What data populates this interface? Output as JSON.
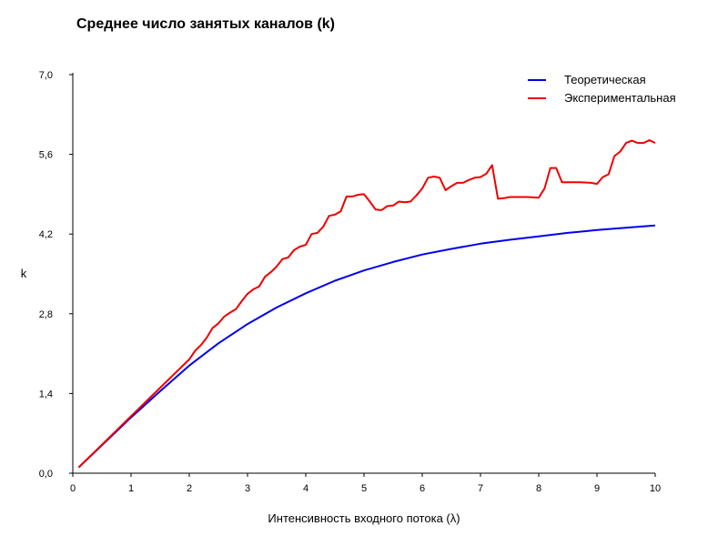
{
  "chart_data": {
    "type": "line",
    "title": "Среднее число занятых каналов (k)",
    "xlabel": "Интенсивность входного потока (λ)",
    "ylabel": "k",
    "xlim": [
      0,
      10
    ],
    "ylim": [
      0,
      7
    ],
    "x_ticks": [
      "0",
      "1",
      "2",
      "3",
      "4",
      "5",
      "6",
      "7",
      "8",
      "9",
      "10"
    ],
    "y_ticks": [
      "0,0",
      "1,4",
      "2,8",
      "4,2",
      "5,6",
      "7,0"
    ],
    "grid": false,
    "legend_position": "top-right",
    "series": [
      {
        "name": "Теоретическая",
        "color": "#0000ee",
        "points": [
          [
            0.1,
            0.1
          ],
          [
            0.5,
            0.49
          ],
          [
            1.0,
            0.98
          ],
          [
            1.5,
            1.44
          ],
          [
            2.0,
            1.89
          ],
          [
            2.5,
            2.28
          ],
          [
            3.0,
            2.62
          ],
          [
            3.5,
            2.91
          ],
          [
            4.0,
            3.16
          ],
          [
            4.5,
            3.38
          ],
          [
            5.0,
            3.56
          ],
          [
            5.5,
            3.71
          ],
          [
            6.0,
            3.84
          ],
          [
            6.5,
            3.94
          ],
          [
            7.0,
            4.03
          ],
          [
            7.5,
            4.1
          ],
          [
            8.0,
            4.16
          ],
          [
            8.5,
            4.22
          ],
          [
            9.0,
            4.27
          ],
          [
            9.5,
            4.31
          ],
          [
            10.0,
            4.35
          ]
        ]
      },
      {
        "name": "Экспериментальная",
        "color": "#ee0000",
        "points": [
          [
            0.1,
            0.1
          ],
          [
            0.5,
            0.5
          ],
          [
            1.0,
            1.0
          ],
          [
            1.5,
            1.5
          ],
          [
            1.7,
            1.7
          ],
          [
            1.9,
            1.9
          ],
          [
            2.0,
            2.0
          ],
          [
            2.1,
            2.15
          ],
          [
            2.2,
            2.25
          ],
          [
            2.3,
            2.38
          ],
          [
            2.4,
            2.55
          ],
          [
            2.5,
            2.63
          ],
          [
            2.6,
            2.75
          ],
          [
            2.7,
            2.82
          ],
          [
            2.8,
            2.88
          ],
          [
            2.9,
            3.02
          ],
          [
            3.0,
            3.15
          ],
          [
            3.1,
            3.23
          ],
          [
            3.2,
            3.28
          ],
          [
            3.3,
            3.45
          ],
          [
            3.4,
            3.53
          ],
          [
            3.5,
            3.63
          ],
          [
            3.6,
            3.76
          ],
          [
            3.7,
            3.79
          ],
          [
            3.8,
            3.92
          ],
          [
            3.9,
            3.98
          ],
          [
            4.0,
            4.01
          ],
          [
            4.1,
            4.2
          ],
          [
            4.2,
            4.22
          ],
          [
            4.3,
            4.33
          ],
          [
            4.4,
            4.52
          ],
          [
            4.5,
            4.54
          ],
          [
            4.6,
            4.6
          ],
          [
            4.7,
            4.86
          ],
          [
            4.8,
            4.86
          ],
          [
            4.9,
            4.89
          ],
          [
            5.0,
            4.9
          ],
          [
            5.1,
            4.77
          ],
          [
            5.2,
            4.63
          ],
          [
            5.3,
            4.62
          ],
          [
            5.4,
            4.69
          ],
          [
            5.5,
            4.7
          ],
          [
            5.6,
            4.77
          ],
          [
            5.7,
            4.76
          ],
          [
            5.8,
            4.77
          ],
          [
            5.9,
            4.88
          ],
          [
            6.0,
            5.0
          ],
          [
            6.1,
            5.19
          ],
          [
            6.2,
            5.21
          ],
          [
            6.3,
            5.19
          ],
          [
            6.4,
            4.97
          ],
          [
            6.5,
            5.04
          ],
          [
            6.6,
            5.1
          ],
          [
            6.7,
            5.1
          ],
          [
            6.8,
            5.15
          ],
          [
            6.9,
            5.19
          ],
          [
            7.0,
            5.2
          ],
          [
            7.1,
            5.26
          ],
          [
            7.2,
            5.41
          ],
          [
            7.3,
            4.82
          ],
          [
            7.4,
            4.83
          ],
          [
            7.5,
            4.85
          ],
          [
            7.7,
            4.85
          ],
          [
            7.8,
            4.85
          ],
          [
            8.0,
            4.84
          ],
          [
            8.1,
            5.0
          ],
          [
            8.2,
            5.36
          ],
          [
            8.3,
            5.36
          ],
          [
            8.4,
            5.11
          ],
          [
            8.5,
            5.11
          ],
          [
            8.6,
            5.11
          ],
          [
            8.7,
            5.11
          ],
          [
            8.9,
            5.1
          ],
          [
            9.0,
            5.08
          ],
          [
            9.1,
            5.2
          ],
          [
            9.2,
            5.25
          ],
          [
            9.3,
            5.57
          ],
          [
            9.4,
            5.65
          ],
          [
            9.5,
            5.8
          ],
          [
            9.6,
            5.84
          ],
          [
            9.7,
            5.8
          ],
          [
            9.8,
            5.8
          ],
          [
            9.9,
            5.85
          ],
          [
            10.0,
            5.8
          ]
        ]
      }
    ]
  }
}
